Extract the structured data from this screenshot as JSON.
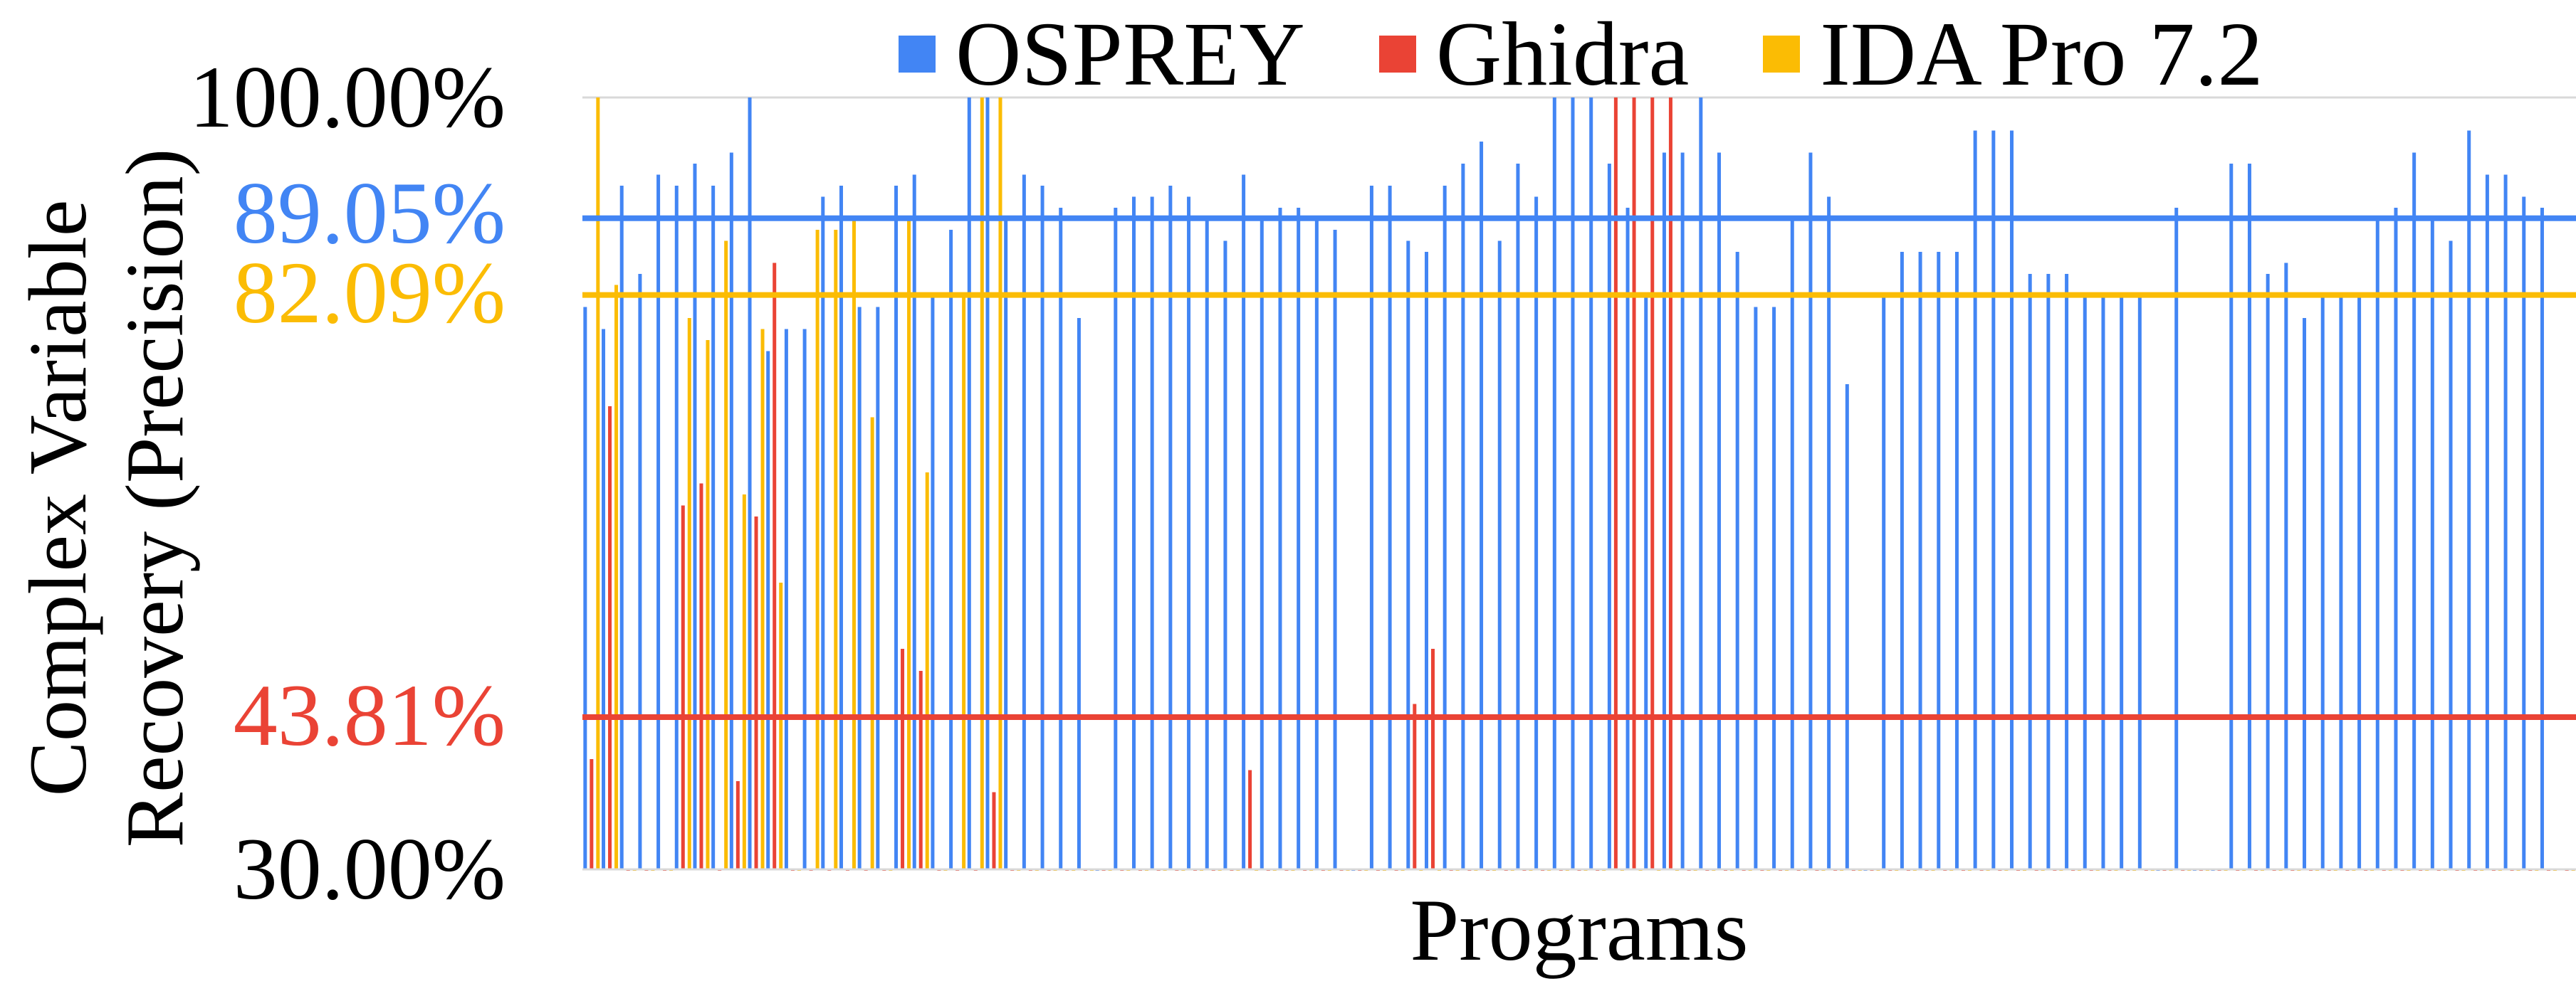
{
  "chart_data": {
    "type": "bar",
    "title": "",
    "xlabel": "Programs",
    "ylabel": "Complex Variable Recovery (Precision)",
    "ylim": [
      30,
      100
    ],
    "y_ticks": [
      "30.00%",
      "100.00%"
    ],
    "grid": false,
    "legend": "top",
    "colors": {
      "OSPREY": "#4285F4",
      "Ghidra": "#EA4335",
      "IDA Pro 7.2": "#FBBC04"
    },
    "reference_lines": [
      {
        "series": "OSPREY",
        "value": 89.05,
        "label": "89.05%",
        "color": "#4285F4"
      },
      {
        "series": "IDA Pro 7.2",
        "value": 82.09,
        "label": "82.09%",
        "color": "#FBBC04"
      },
      {
        "series": "Ghidra",
        "value": 43.81,
        "label": "43.81%",
        "color": "#EA4335"
      }
    ],
    "series": [
      {
        "name": "OSPREY",
        "values": [
          81,
          79,
          92,
          84,
          93,
          92,
          94,
          92,
          95,
          100,
          77,
          79,
          79,
          91,
          92,
          81,
          81,
          92,
          93,
          82,
          88,
          100,
          100,
          89,
          93,
          92,
          90,
          80,
          30,
          90,
          91,
          91,
          92,
          91,
          89,
          87,
          93,
          89,
          90,
          90,
          89,
          88,
          30,
          92,
          92,
          87,
          86,
          92,
          94,
          96,
          87,
          94,
          91,
          100,
          100,
          100,
          94,
          90,
          82,
          95,
          95,
          100,
          95,
          86,
          81,
          81,
          89,
          95,
          91,
          74,
          30,
          82,
          86,
          86,
          86,
          86,
          97,
          97,
          97,
          84,
          84,
          84,
          82,
          82,
          82,
          82,
          30,
          90,
          30,
          30,
          94,
          94,
          84,
          85,
          80,
          82,
          82,
          82,
          89,
          90,
          95,
          89,
          87,
          97,
          93,
          93,
          91,
          90
        ]
      },
      {
        "name": "Ghidra",
        "values": [
          40,
          72,
          30,
          30,
          30,
          63,
          65,
          30,
          38,
          62,
          85,
          30,
          30,
          30,
          30,
          30,
          30,
          50,
          48,
          30,
          30,
          30,
          37,
          30,
          30,
          30,
          30,
          30,
          30,
          30,
          30,
          30,
          30,
          30,
          30,
          30,
          39,
          30,
          30,
          30,
          30,
          30,
          30,
          30,
          30,
          45,
          50,
          30,
          30,
          30,
          30,
          30,
          30,
          30,
          30,
          30,
          100,
          100,
          100,
          100,
          30,
          30,
          30,
          30,
          30,
          30,
          30,
          30,
          30,
          30,
          30,
          30,
          30,
          30,
          30,
          30,
          30,
          30,
          30,
          30,
          30,
          30,
          30,
          30,
          30,
          30,
          30,
          30,
          30,
          30,
          30,
          30,
          30,
          30,
          30,
          30,
          30,
          30,
          30,
          30,
          30,
          30,
          30,
          30,
          30,
          30,
          30,
          30,
          30
        ]
      },
      {
        "name": "IDA Pro 7.2",
        "values": [
          100,
          83,
          30,
          30,
          30,
          80,
          78,
          87,
          64,
          79,
          56,
          30,
          88,
          88,
          89,
          71,
          30,
          89,
          66,
          30,
          82,
          100,
          100,
          30,
          30,
          30,
          30,
          30,
          30,
          30,
          30,
          30,
          30,
          30,
          30,
          30,
          30,
          30,
          30,
          30,
          30,
          30,
          30,
          30,
          30,
          30,
          30,
          30,
          30,
          30,
          30,
          30,
          30,
          30,
          30,
          30,
          30,
          30,
          30,
          30,
          30,
          30,
          30,
          30,
          30,
          30,
          30,
          30,
          30,
          30,
          30,
          30,
          30,
          30,
          30,
          30,
          30,
          30,
          30,
          30,
          30,
          30,
          30,
          30,
          30,
          30,
          30,
          30,
          30,
          30,
          30,
          30,
          30,
          30,
          30,
          30,
          30,
          30,
          30,
          30,
          30,
          30,
          30,
          30,
          30,
          30,
          30,
          30,
          30
        ]
      }
    ]
  }
}
